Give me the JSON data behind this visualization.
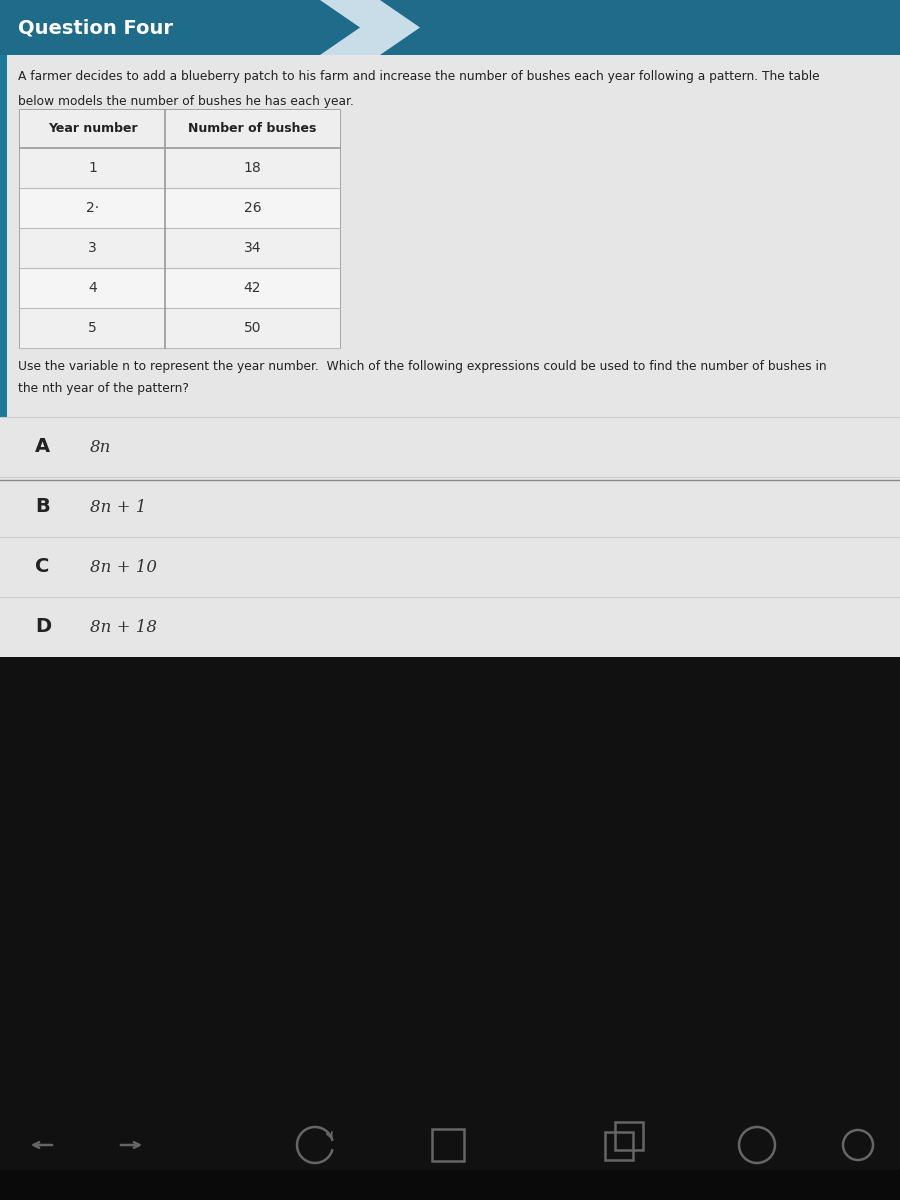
{
  "title": "Question Four",
  "title_bg_color": "#1e6b8a",
  "title_text_color": "#ffffff",
  "content_bg_color": "#e8e8e8",
  "paragraph_line1": "A farmer decides to add a blueberry patch to his farm and increase the number of bushes each year following a pattern. The table",
  "paragraph_line2": "below models the number of bushes he has each year.",
  "table_headers": [
    "Year number",
    "Number of bushes"
  ],
  "table_data": [
    [
      "1",
      "18"
    ],
    [
      "2·",
      "26"
    ],
    [
      "3",
      "34"
    ],
    [
      "4",
      "42"
    ],
    [
      "5",
      "50"
    ]
  ],
  "question_line1": "Use the variable n to represent the year number.  Which of the following expressions could be used to find the number of bushes in",
  "question_line2": "the nth year of the pattern?",
  "options": [
    {
      "label": "A",
      "expr": "8n"
    },
    {
      "label": "B",
      "expr": "8n + 1"
    },
    {
      "label": "C",
      "expr": "8n + 10"
    },
    {
      "label": "D",
      "expr": "8n + 18"
    }
  ],
  "left_bar_color": "#1e7a9a",
  "dark_bg_color": "#111111",
  "screen_bg_color": "#1c1c1c"
}
